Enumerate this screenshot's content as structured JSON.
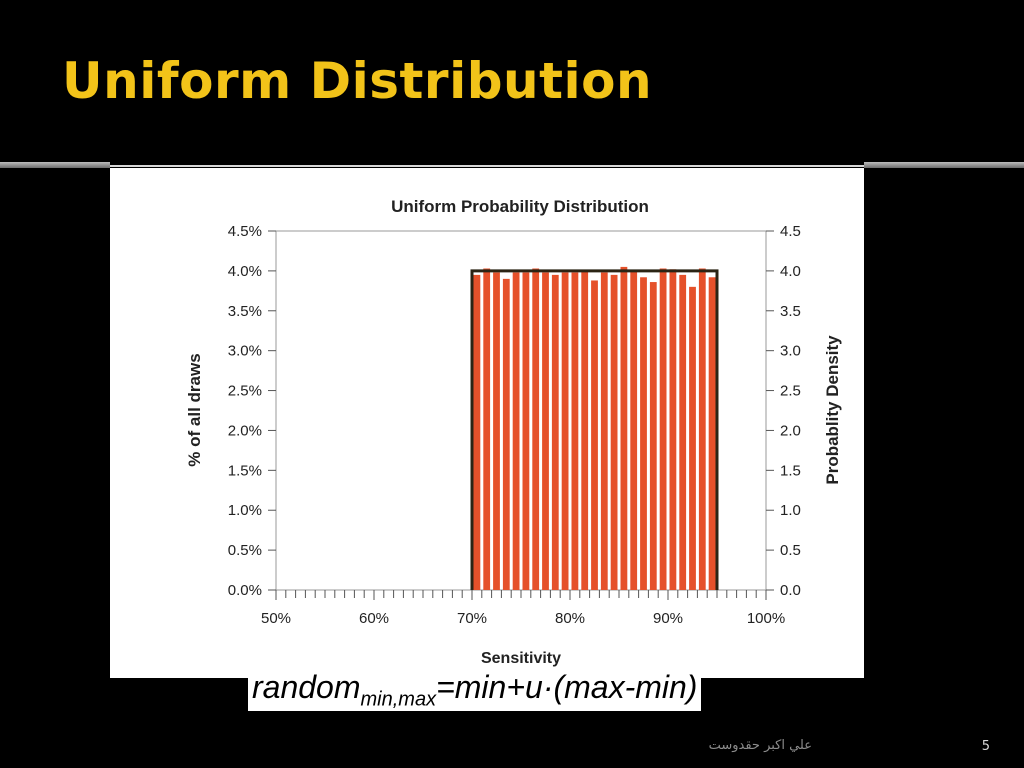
{
  "slide": {
    "title": "Uniform Distribution",
    "formula": {
      "main": "random",
      "subscript": "min,max",
      "rest": "=min+u·(max-min)"
    },
    "footer_author": "علي اكبر حقدوست",
    "page_number": "5"
  },
  "colors": {
    "title": "#f2c319",
    "bar_fill": "#e5512a",
    "density_outline": "#2b2414",
    "background": "#000000"
  },
  "chart_data": {
    "type": "bar",
    "title": "Uniform Probability Distribution",
    "xlabel": "Sensitivity",
    "ylabel_left": "% of all draws",
    "ylabel_right": "Probablity Density",
    "xlim": [
      50,
      100
    ],
    "ylim_left": [
      0.0,
      4.5
    ],
    "ylim_right": [
      0.0,
      4.5
    ],
    "x_ticks": [
      "50%",
      "60%",
      "70%",
      "80%",
      "90%",
      "100%"
    ],
    "x_tick_values": [
      50,
      60,
      70,
      80,
      90,
      100
    ],
    "y_ticks_left": [
      "0.0%",
      "0.5%",
      "1.0%",
      "1.5%",
      "2.0%",
      "2.5%",
      "3.0%",
      "3.5%",
      "4.0%",
      "4.5%"
    ],
    "y_ticks_right": [
      "0.0",
      "0.5",
      "1.0",
      "1.5",
      "2.0",
      "2.5",
      "3.0",
      "3.5",
      "4.0",
      "4.5"
    ],
    "bin_width": 1,
    "bins": [
      70,
      71,
      72,
      73,
      74,
      75,
      76,
      77,
      78,
      79,
      80,
      81,
      82,
      83,
      84,
      85,
      86,
      87,
      88,
      89,
      90,
      91,
      92,
      93,
      94
    ],
    "values": [
      3.95,
      4.03,
      3.98,
      3.9,
      3.98,
      3.98,
      4.03,
      3.98,
      3.95,
      3.98,
      3.98,
      4.0,
      3.88,
      3.98,
      3.95,
      4.05,
      4.0,
      3.92,
      3.86,
      4.03,
      4.02,
      3.95,
      3.8,
      4.03,
      3.92
    ],
    "density": {
      "x_min": 70,
      "x_max": 95,
      "value": 4.0
    },
    "grid": false,
    "legend": "none"
  }
}
